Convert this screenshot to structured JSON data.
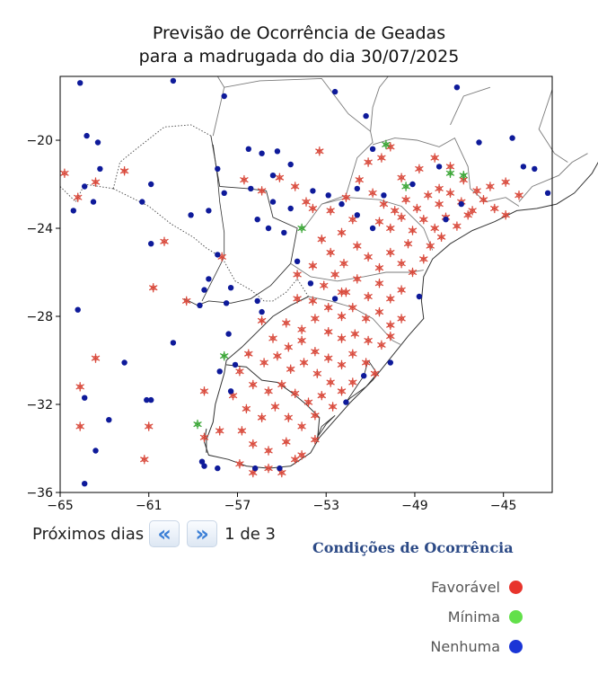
{
  "title": {
    "line1": "Previsão de Ocorrência de Geadas",
    "line2": "para a madrugada do dia 30/07/2025"
  },
  "axes": {
    "x_ticks": [
      "−65",
      "−61",
      "−57",
      "−53",
      "−49",
      "−45"
    ],
    "y_ticks": [
      "−20",
      "−24",
      "−28",
      "−32",
      "−36"
    ],
    "x_values": [
      -65,
      -61,
      -57,
      -53,
      -49,
      -45
    ],
    "y_values": [
      -20,
      -24,
      -28,
      -32,
      -36
    ],
    "xlim": [
      -65,
      -42.8
    ],
    "ylim": [
      -36,
      -17.1
    ]
  },
  "navigation": {
    "label": "Próximos dias",
    "prev_icon": "double-chevron-left-icon",
    "next_icon": "double-chevron-right-icon",
    "prev_glyph": "«",
    "next_glyph": "»",
    "page_text": "1 de 3"
  },
  "legend": {
    "title": "Condições de Ocorrência",
    "items": [
      {
        "label": "Favorável",
        "color": "#e8342c"
      },
      {
        "label": "Mínima",
        "color": "#62e04a"
      },
      {
        "label": "Nenhuma",
        "color": "#1a35d6"
      }
    ]
  },
  "colors": {
    "favoravel": "#d94a3c",
    "minima": "#3aa636",
    "nenhuma": "#0e1a9a"
  },
  "chart_data": {
    "type": "scatter",
    "xlim": [
      -65,
      -42.8
    ],
    "ylim": [
      -36,
      -17.1
    ],
    "series": [
      {
        "name": "Favorável",
        "points": [
          [
            -64.8,
            -21.5
          ],
          [
            -64.2,
            -22.6
          ],
          [
            -63.4,
            -21.9
          ],
          [
            -62.1,
            -21.4
          ],
          [
            -64.1,
            -31.2
          ],
          [
            -63.4,
            -29.9
          ],
          [
            -64.1,
            -33
          ],
          [
            -61,
            -33
          ],
          [
            -61.2,
            -34.5
          ],
          [
            -60.3,
            -24.6
          ],
          [
            -60.8,
            -26.7
          ],
          [
            -59.3,
            -27.3
          ],
          [
            -57.7,
            -25.3
          ],
          [
            -58.5,
            -31.4
          ],
          [
            -56.7,
            -21.8
          ],
          [
            -55.9,
            -22.3
          ],
          [
            -55.1,
            -21.7
          ],
          [
            -54.4,
            -22.1
          ],
          [
            -53.3,
            -20.5
          ],
          [
            -53.9,
            -22.8
          ],
          [
            -52.8,
            -23.2
          ],
          [
            -52.1,
            -22.6
          ],
          [
            -51.5,
            -21.8
          ],
          [
            -51.1,
            -21
          ],
          [
            -50.5,
            -20.8
          ],
          [
            -50.1,
            -20.3
          ],
          [
            -49.6,
            -21.7
          ],
          [
            -48.8,
            -21.3
          ],
          [
            -48.1,
            -20.8
          ],
          [
            -47.4,
            -21.2
          ],
          [
            -46.8,
            -21.8
          ],
          [
            -46.2,
            -22.3
          ],
          [
            -45.6,
            -22.1
          ],
          [
            -44.9,
            -21.9
          ],
          [
            -44.3,
            -22.5
          ],
          [
            -50.9,
            -22.4
          ],
          [
            -50.4,
            -22.9
          ],
          [
            -49.9,
            -23.2
          ],
          [
            -49.4,
            -22.7
          ],
          [
            -48.9,
            -23.1
          ],
          [
            -48.4,
            -22.5
          ],
          [
            -47.9,
            -22.9
          ],
          [
            -47.4,
            -22.4
          ],
          [
            -46.9,
            -22.8
          ],
          [
            -46.4,
            -23.2
          ],
          [
            -45.9,
            -22.7
          ],
          [
            -45.4,
            -23.1
          ],
          [
            -44.9,
            -23.4
          ],
          [
            -50.6,
            -23.7
          ],
          [
            -50.1,
            -24
          ],
          [
            -49.6,
            -23.5
          ],
          [
            -49.1,
            -24.1
          ],
          [
            -48.6,
            -23.6
          ],
          [
            -48.1,
            -24
          ],
          [
            -47.6,
            -23.5
          ],
          [
            -47.1,
            -23.9
          ],
          [
            -46.6,
            -23.4
          ],
          [
            -51.8,
            -23.6
          ],
          [
            -52.3,
            -24.2
          ],
          [
            -53.2,
            -24.5
          ],
          [
            -52.8,
            -25.1
          ],
          [
            -52.2,
            -25.6
          ],
          [
            -51.6,
            -24.8
          ],
          [
            -51.1,
            -25.3
          ],
          [
            -50.6,
            -25.8
          ],
          [
            -50.1,
            -25.1
          ],
          [
            -49.6,
            -25.6
          ],
          [
            -49.1,
            -26
          ],
          [
            -48.6,
            -25.4
          ],
          [
            -48.3,
            -24.8
          ],
          [
            -47.8,
            -24.4
          ],
          [
            -53.6,
            -25.7
          ],
          [
            -54.3,
            -26.1
          ],
          [
            -53.1,
            -26.6
          ],
          [
            -52.6,
            -26.1
          ],
          [
            -52.1,
            -26.9
          ],
          [
            -51.6,
            -26.3
          ],
          [
            -51.1,
            -27.1
          ],
          [
            -50.6,
            -26.5
          ],
          [
            -50.1,
            -27.2
          ],
          [
            -49.6,
            -26.8
          ],
          [
            -53.6,
            -27.3
          ],
          [
            -52.9,
            -27.6
          ],
          [
            -52.3,
            -28
          ],
          [
            -51.8,
            -27.6
          ],
          [
            -51.2,
            -28.1
          ],
          [
            -50.6,
            -27.8
          ],
          [
            -50.1,
            -28.4
          ],
          [
            -49.6,
            -28.1
          ],
          [
            -54.3,
            -27.2
          ],
          [
            -54.8,
            -28.3
          ],
          [
            -54.1,
            -28.6
          ],
          [
            -53.5,
            -28.1
          ],
          [
            -52.9,
            -28.7
          ],
          [
            -52.3,
            -29
          ],
          [
            -51.7,
            -28.8
          ],
          [
            -51.1,
            -29.1
          ],
          [
            -50.5,
            -29.3
          ],
          [
            -50.1,
            -28.9
          ],
          [
            -55.9,
            -28.2
          ],
          [
            -55.4,
            -29
          ],
          [
            -54.7,
            -29.4
          ],
          [
            -54.1,
            -29.1
          ],
          [
            -53.5,
            -29.6
          ],
          [
            -52.9,
            -29.9
          ],
          [
            -52.3,
            -30.2
          ],
          [
            -51.8,
            -29.7
          ],
          [
            -51.2,
            -30.1
          ],
          [
            -50.8,
            -30.6
          ],
          [
            -56.5,
            -29.7
          ],
          [
            -55.8,
            -30.1
          ],
          [
            -55.2,
            -29.8
          ],
          [
            -54.6,
            -30.4
          ],
          [
            -54,
            -30.1
          ],
          [
            -53.4,
            -30.6
          ],
          [
            -52.8,
            -31
          ],
          [
            -52.3,
            -31.4
          ],
          [
            -51.8,
            -31
          ],
          [
            -56.9,
            -30.5
          ],
          [
            -56.3,
            -31.1
          ],
          [
            -55.6,
            -31.4
          ],
          [
            -55,
            -31.1
          ],
          [
            -54.4,
            -31.5
          ],
          [
            -53.8,
            -31.9
          ],
          [
            -53.2,
            -31.6
          ],
          [
            -52.7,
            -32.1
          ],
          [
            -57.2,
            -31.6
          ],
          [
            -56.6,
            -32.2
          ],
          [
            -55.9,
            -32.6
          ],
          [
            -55.3,
            -32.1
          ],
          [
            -54.7,
            -32.6
          ],
          [
            -54.1,
            -33
          ],
          [
            -53.5,
            -32.5
          ],
          [
            -56.8,
            -33.2
          ],
          [
            -56.3,
            -33.8
          ],
          [
            -55.6,
            -34.1
          ],
          [
            -54.8,
            -33.7
          ],
          [
            -54.1,
            -34.3
          ],
          [
            -53.5,
            -33.6
          ],
          [
            -56.9,
            -34.7
          ],
          [
            -56.3,
            -35.1
          ],
          [
            -55.6,
            -34.9
          ],
          [
            -55,
            -35.1
          ],
          [
            -54.4,
            -34.5
          ],
          [
            -58.5,
            -33.5
          ],
          [
            -57.8,
            -33.2
          ],
          [
            -52.3,
            -26.9
          ],
          [
            -53.6,
            -23.1
          ],
          [
            -49.3,
            -24.7
          ],
          [
            -47.9,
            -22.2
          ]
        ]
      },
      {
        "name": "Mínima",
        "points": [
          [
            -50.3,
            -20.2
          ],
          [
            -49.4,
            -22.1
          ],
          [
            -47.4,
            -21.5
          ],
          [
            -46.8,
            -21.6
          ],
          [
            -54.1,
            -24
          ],
          [
            -57.6,
            -29.8
          ],
          [
            -58.8,
            -32.9
          ]
        ]
      },
      {
        "name": "Nenhuma",
        "points": [
          [
            -64.1,
            -17.4
          ],
          [
            -63.8,
            -19.8
          ],
          [
            -63.3,
            -20.1
          ],
          [
            -63.2,
            -21.3
          ],
          [
            -63.9,
            -22.1
          ],
          [
            -63.5,
            -22.8
          ],
          [
            -64.4,
            -23.2
          ],
          [
            -61.3,
            -22.8
          ],
          [
            -60.9,
            -22
          ],
          [
            -60.9,
            -24.7
          ],
          [
            -59.9,
            -17.3
          ],
          [
            -57.6,
            -18
          ],
          [
            -56.5,
            -20.4
          ],
          [
            -55.9,
            -20.6
          ],
          [
            -55.2,
            -20.5
          ],
          [
            -54.6,
            -21.1
          ],
          [
            -55.4,
            -21.6
          ],
          [
            -57.9,
            -21.3
          ],
          [
            -57.6,
            -22.4
          ],
          [
            -56.4,
            -22.2
          ],
          [
            -55.4,
            -22.8
          ],
          [
            -56.1,
            -23.6
          ],
          [
            -55.6,
            -24
          ],
          [
            -54.9,
            -24.2
          ],
          [
            -54.6,
            -23.1
          ],
          [
            -53.6,
            -22.3
          ],
          [
            -52.9,
            -22.5
          ],
          [
            -52.3,
            -22.9
          ],
          [
            -51.6,
            -22.2
          ],
          [
            -50.9,
            -20.4
          ],
          [
            -51.2,
            -18.9
          ],
          [
            -52.6,
            -17.8
          ],
          [
            -47.1,
            -17.6
          ],
          [
            -46.1,
            -20.1
          ],
          [
            -44.6,
            -19.9
          ],
          [
            -44.1,
            -21.2
          ],
          [
            -43.6,
            -21.3
          ],
          [
            -43,
            -22.4
          ],
          [
            -59.1,
            -23.4
          ],
          [
            -58.3,
            -23.2
          ],
          [
            -57.9,
            -25.2
          ],
          [
            -58.3,
            -26.3
          ],
          [
            -58.5,
            -26.8
          ],
          [
            -57.3,
            -26.7
          ],
          [
            -57.5,
            -27.4
          ],
          [
            -56.1,
            -27.3
          ],
          [
            -55.9,
            -27.8
          ],
          [
            -54.3,
            -25.5
          ],
          [
            -53.7,
            -26.5
          ],
          [
            -52.6,
            -27.2
          ],
          [
            -51.6,
            -23.4
          ],
          [
            -50.9,
            -24
          ],
          [
            -50.4,
            -22.5
          ],
          [
            -49.1,
            -22
          ],
          [
            -47.9,
            -21.2
          ],
          [
            -46.9,
            -22.9
          ],
          [
            -47.6,
            -23.6
          ],
          [
            -48.8,
            -27.1
          ],
          [
            -50.1,
            -30.1
          ],
          [
            -51.3,
            -30.7
          ],
          [
            -52.1,
            -31.9
          ],
          [
            -57.4,
            -28.8
          ],
          [
            -58.7,
            -27.5
          ],
          [
            -59.9,
            -29.2
          ],
          [
            -62.1,
            -30.1
          ],
          [
            -61.1,
            -31.8
          ],
          [
            -60.9,
            -31.8
          ],
          [
            -63.9,
            -31.7
          ],
          [
            -64.2,
            -27.7
          ],
          [
            -62.8,
            -32.7
          ],
          [
            -63.4,
            -34.1
          ],
          [
            -63.9,
            -35.6
          ],
          [
            -58.6,
            -34.6
          ],
          [
            -58.5,
            -34.8
          ],
          [
            -57.9,
            -34.9
          ],
          [
            -56.2,
            -34.9
          ],
          [
            -55.1,
            -34.9
          ],
          [
            -57.1,
            -30.2
          ],
          [
            -57.8,
            -30.5
          ],
          [
            -57.3,
            -31.4
          ]
        ]
      }
    ]
  }
}
